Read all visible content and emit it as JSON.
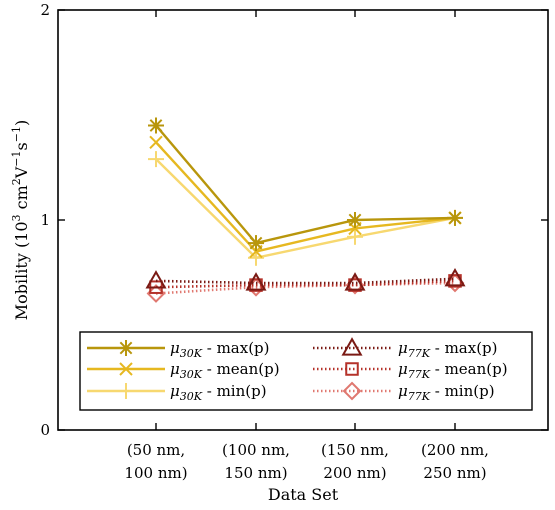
{
  "chart_data": {
    "type": "line",
    "xlabel": "Data Set",
    "ylabel": "Mobility (10³ cm²V⁻¹s⁻¹)",
    "ylim": [
      0,
      2
    ],
    "yticks": [
      "0",
      "1",
      "2"
    ],
    "categories": [
      [
        "(50 nm,",
        "100 nm)"
      ],
      [
        "(100 nm,",
        "150 nm)"
      ],
      [
        "(150 nm,",
        "200 nm)"
      ],
      [
        "(200 nm,",
        "250 nm)"
      ]
    ],
    "grid": false,
    "legend_position": "bottom",
    "series": [
      {
        "name": "μ30K - max(p)",
        "values": [
          1.45,
          0.89,
          1.0,
          1.01
        ],
        "color": "#b8960c",
        "marker": "asterisk",
        "linestyle": "solid"
      },
      {
        "name": "μ30K - mean(p)",
        "values": [
          1.37,
          0.85,
          0.96,
          1.01
        ],
        "color": "#e6b820",
        "marker": "x",
        "linestyle": "solid"
      },
      {
        "name": "μ30K - min(p)",
        "values": [
          1.29,
          0.82,
          0.92,
          1.01
        ],
        "color": "#f7d870",
        "marker": "plus",
        "linestyle": "solid"
      },
      {
        "name": "μ77K - max(p)",
        "values": [
          0.71,
          0.7,
          0.7,
          0.72
        ],
        "color": "#7a1a14",
        "marker": "triangle",
        "linestyle": "dotted"
      },
      {
        "name": "μ77K - mean(p)",
        "values": [
          0.68,
          0.69,
          0.69,
          0.71
        ],
        "color": "#b5322a",
        "marker": "square",
        "linestyle": "dotted"
      },
      {
        "name": "μ77K - min(p)",
        "values": [
          0.65,
          0.68,
          0.69,
          0.7
        ],
        "color": "#e07870",
        "marker": "diamond",
        "linestyle": "dotted"
      }
    ]
  }
}
